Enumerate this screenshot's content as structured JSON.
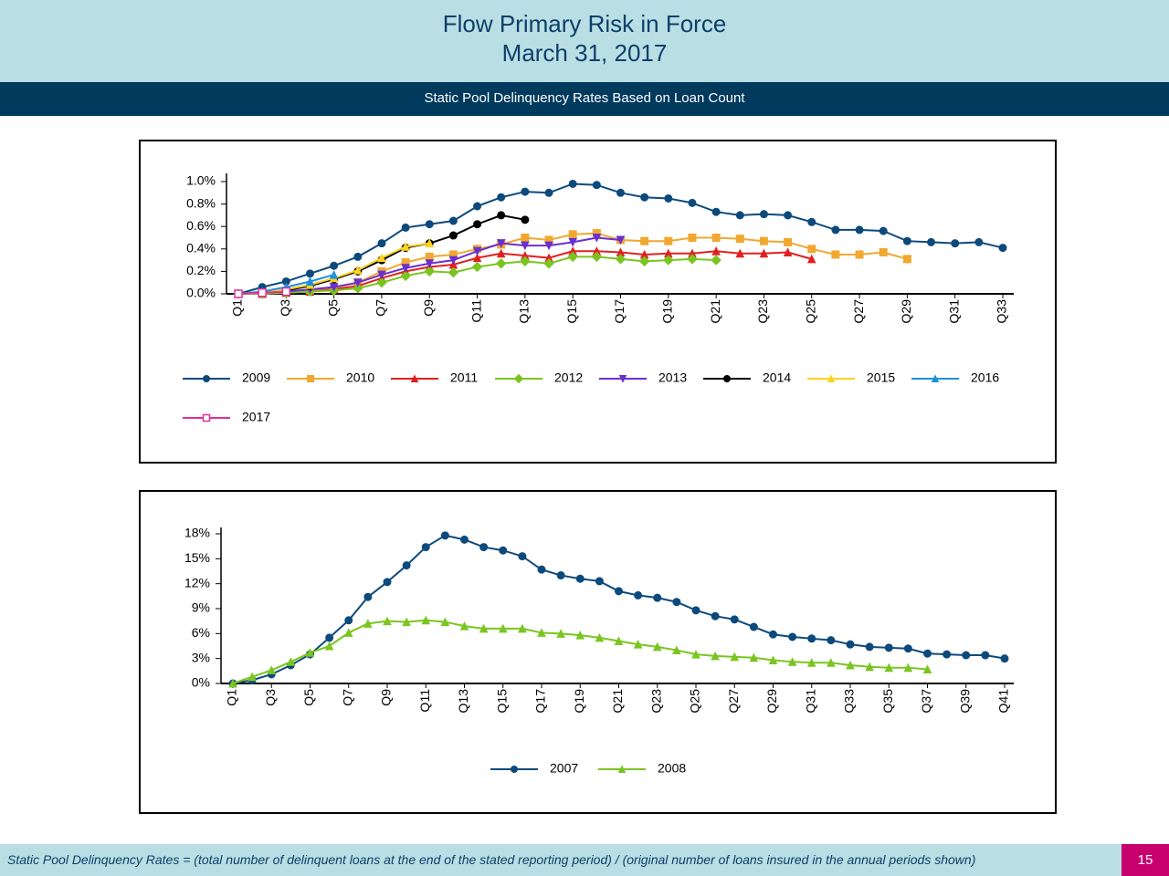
{
  "header": {
    "title": "Flow Primary Risk in Force",
    "date": "March 31, 2017",
    "subtitle": "Static Pool Delinquency Rates Based on Loan Count"
  },
  "footer": {
    "note": "Static Pool Delinquency Rates = (total number of delinquent loans at the end of the stated reporting period) / (original number of loans insured in the annual periods shown)",
    "page": "15"
  },
  "chart_data": [
    {
      "type": "line",
      "categories": [
        "Q1",
        null,
        "Q3",
        null,
        "Q5",
        null,
        "Q7",
        null,
        "Q9",
        null,
        "Q11",
        null,
        "Q13",
        null,
        "Q15",
        null,
        "Q17",
        null,
        "Q19",
        null,
        "Q21",
        null,
        "Q23",
        null,
        "Q25",
        null,
        "Q27",
        null,
        "Q29",
        null,
        "Q31",
        null,
        "Q33"
      ],
      "ylim": [
        0,
        1
      ],
      "yticks": [
        {
          "value": 0,
          "label": "0.0%"
        },
        {
          "value": 0.2,
          "label": "0.2%"
        },
        {
          "value": 0.4,
          "label": "0.4%"
        },
        {
          "value": 0.6,
          "label": "0.6%"
        },
        {
          "value": 0.8,
          "label": "0.8%"
        },
        {
          "value": 1,
          "label": "1.0%"
        }
      ],
      "grid": false,
      "series": [
        {
          "name": "2009",
          "color": "#0d4a7c",
          "marker": "circle",
          "values": [
            0,
            0.06,
            0.11,
            0.18,
            0.25,
            0.33,
            0.45,
            0.59,
            0.62,
            0.65,
            0.78,
            0.86,
            0.91,
            0.9,
            0.98,
            0.97,
            0.9,
            0.86,
            0.85,
            0.81,
            0.73,
            0.7,
            0.71,
            0.7,
            0.64,
            0.57,
            0.57,
            0.56,
            0.47,
            0.46,
            0.45,
            0.46,
            0.41
          ]
        },
        {
          "name": "2010",
          "color": "#f0a830",
          "marker": "square",
          "values": [
            0,
            0.01,
            0.02,
            0.03,
            0.05,
            0.1,
            0.2,
            0.28,
            0.33,
            0.35,
            0.4,
            0.44,
            0.5,
            0.48,
            0.53,
            0.54,
            0.48,
            0.47,
            0.47,
            0.5,
            0.5,
            0.49,
            0.47,
            0.46,
            0.4,
            0.35,
            0.35,
            0.37,
            0.31,
            null,
            null,
            null,
            null
          ]
        },
        {
          "name": "2011",
          "color": "#e02020",
          "marker": "triangle",
          "values": [
            0,
            0,
            0.01,
            0.02,
            0.04,
            0.07,
            0.14,
            0.2,
            0.24,
            0.26,
            0.32,
            0.36,
            0.34,
            0.32,
            0.38,
            0.38,
            0.37,
            0.35,
            0.36,
            0.36,
            0.38,
            0.36,
            0.36,
            0.37,
            0.31,
            null,
            null,
            null,
            null,
            null,
            null,
            null,
            null
          ]
        },
        {
          "name": "2012",
          "color": "#7ac520",
          "marker": "diamond",
          "values": [
            0,
            0,
            0.01,
            0.02,
            0.03,
            0.05,
            0.1,
            0.16,
            0.2,
            0.19,
            0.24,
            0.27,
            0.29,
            0.27,
            0.33,
            0.33,
            0.31,
            0.29,
            0.3,
            0.31,
            0.3,
            null,
            null,
            null,
            null,
            null,
            null,
            null,
            null,
            null,
            null,
            null,
            null
          ]
        },
        {
          "name": "2013",
          "color": "#6a2fd0",
          "marker": "down-triangle",
          "values": [
            0,
            0.01,
            0.02,
            0.04,
            0.06,
            0.1,
            0.17,
            0.23,
            0.27,
            0.3,
            0.38,
            0.45,
            0.43,
            0.43,
            0.46,
            0.5,
            0.48,
            null,
            null,
            null,
            null,
            null,
            null,
            null,
            null,
            null,
            null,
            null,
            null,
            null,
            null,
            null,
            null
          ]
        },
        {
          "name": "2014",
          "color": "#000000",
          "marker": "circle",
          "values": [
            0,
            0.01,
            0.03,
            0.07,
            0.13,
            0.2,
            0.3,
            0.41,
            0.45,
            0.52,
            0.62,
            0.7,
            0.66,
            null,
            null,
            null,
            null,
            null,
            null,
            null,
            null,
            null,
            null,
            null,
            null,
            null,
            null,
            null,
            null,
            null,
            null,
            null,
            null
          ]
        },
        {
          "name": "2015",
          "color": "#ffd21f",
          "marker": "triangle",
          "values": [
            0,
            0.01,
            0.04,
            0.08,
            0.14,
            0.21,
            0.32,
            0.42,
            0.45,
            null,
            null,
            null,
            null,
            null,
            null,
            null,
            null,
            null,
            null,
            null,
            null,
            null,
            null,
            null,
            null,
            null,
            null,
            null,
            null,
            null,
            null,
            null,
            null
          ]
        },
        {
          "name": "2016",
          "color": "#1e90e0",
          "marker": "triangle",
          "values": [
            0,
            0.02,
            0.06,
            0.11,
            0.17,
            null,
            null,
            null,
            null,
            null,
            null,
            null,
            null,
            null,
            null,
            null,
            null,
            null,
            null,
            null,
            null,
            null,
            null,
            null,
            null,
            null,
            null,
            null,
            null,
            null,
            null,
            null,
            null
          ]
        },
        {
          "name": "2017",
          "color": "#e0309a",
          "marker": "open-square",
          "values": [
            0,
            0.01,
            0.02,
            null,
            null,
            null,
            null,
            null,
            null,
            null,
            null,
            null,
            null,
            null,
            null,
            null,
            null,
            null,
            null,
            null,
            null,
            null,
            null,
            null,
            null,
            null,
            null,
            null,
            null,
            null,
            null,
            null,
            null
          ]
        }
      ]
    },
    {
      "type": "line",
      "categories": [
        "Q1",
        null,
        "Q3",
        null,
        "Q5",
        null,
        "Q7",
        null,
        "Q9",
        null,
        "Q11",
        null,
        "Q13",
        null,
        "Q15",
        null,
        "Q17",
        null,
        "Q19",
        null,
        "Q21",
        null,
        "Q23",
        null,
        "Q25",
        null,
        "Q27",
        null,
        "Q29",
        null,
        "Q31",
        null,
        "Q33",
        null,
        "Q35",
        null,
        "Q37",
        null,
        "Q39",
        null,
        "Q41"
      ],
      "ylim": [
        0,
        18
      ],
      "yticks": [
        {
          "value": 0,
          "label": "0%"
        },
        {
          "value": 3,
          "label": "3%"
        },
        {
          "value": 6,
          "label": "6%"
        },
        {
          "value": 9,
          "label": "9%"
        },
        {
          "value": 12,
          "label": "12%"
        },
        {
          "value": 15,
          "label": "15%"
        },
        {
          "value": 18,
          "label": "18%"
        }
      ],
      "grid": false,
      "series": [
        {
          "name": "2007",
          "color": "#0d4a7c",
          "marker": "circle",
          "values": [
            0,
            0.4,
            1.1,
            2.2,
            3.5,
            5.5,
            7.6,
            10.4,
            12.2,
            14.2,
            16.4,
            17.8,
            17.3,
            16.4,
            16,
            15.3,
            13.7,
            13,
            12.6,
            12.3,
            11.1,
            10.6,
            10.3,
            9.8,
            8.8,
            8.1,
            7.7,
            6.8,
            5.9,
            5.6,
            5.4,
            5.2,
            4.7,
            4.4,
            4.3,
            4.2,
            3.6,
            3.5,
            3.4,
            3.4,
            3
          ]
        },
        {
          "name": "2008",
          "color": "#7ac520",
          "marker": "triangle",
          "values": [
            0,
            0.8,
            1.6,
            2.6,
            3.7,
            4.5,
            6.1,
            7.2,
            7.5,
            7.4,
            7.6,
            7.4,
            6.9,
            6.6,
            6.6,
            6.6,
            6.1,
            6,
            5.8,
            5.5,
            5.1,
            4.7,
            4.4,
            4,
            3.5,
            3.3,
            3.2,
            3.1,
            2.8,
            2.6,
            2.5,
            2.5,
            2.2,
            2,
            1.9,
            1.9,
            1.7,
            null,
            null,
            null,
            null
          ]
        }
      ]
    }
  ]
}
